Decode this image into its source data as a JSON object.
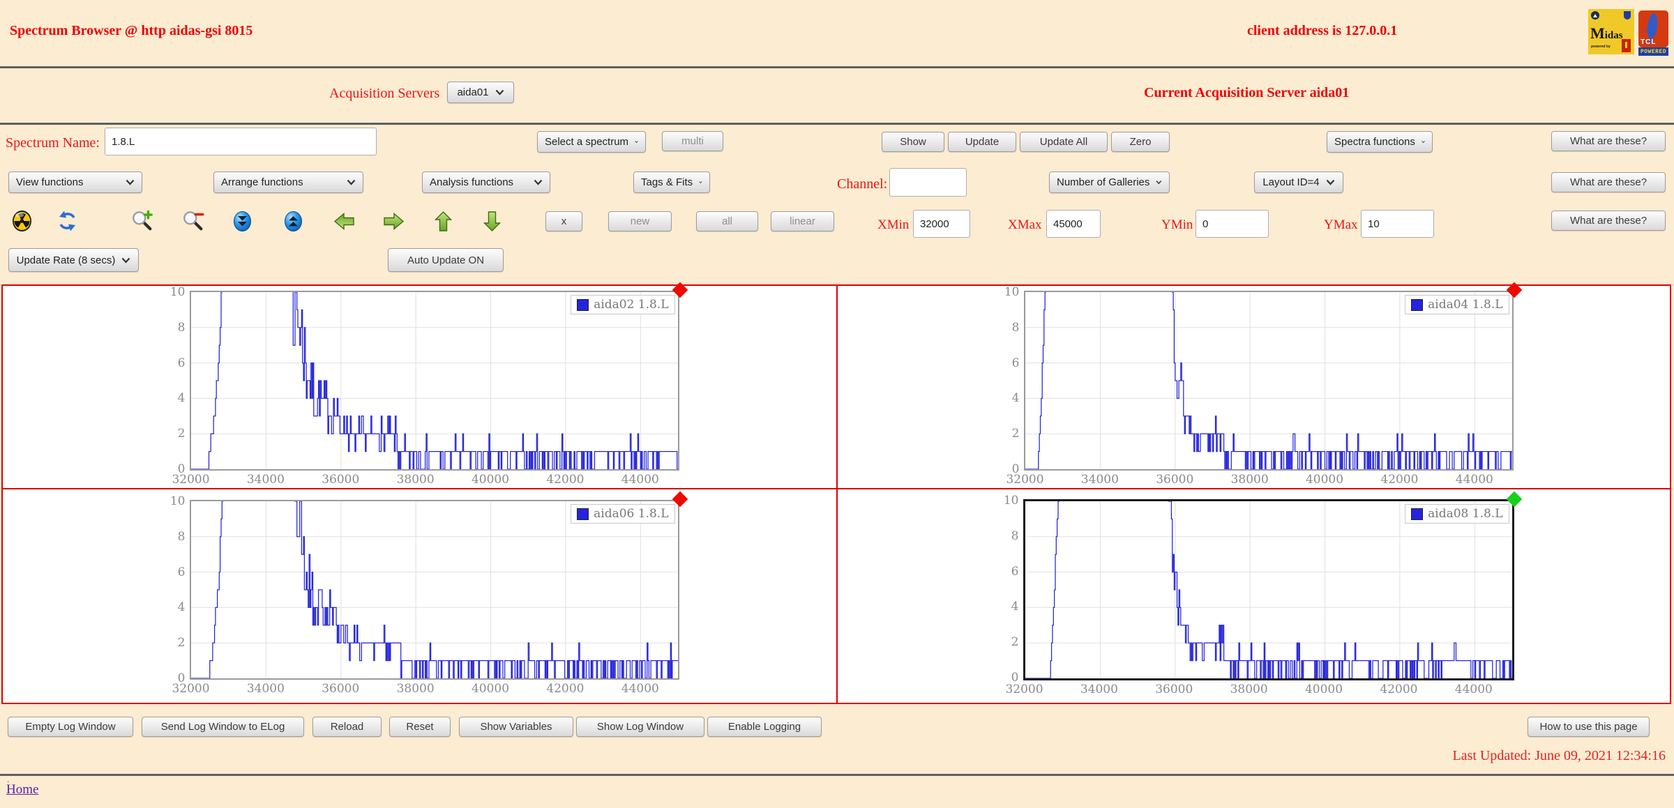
{
  "window": {
    "title": "Spectrum Browser @ http aidas-gsi 8015",
    "client_address": "client address is 127.0.0.1"
  },
  "logos": {
    "midas": {
      "text": "idas",
      "initial": "M",
      "sub": "powered by"
    },
    "tcl": {
      "text": "TCL",
      "sub": "POWERED"
    }
  },
  "server_row": {
    "label": "Acquisition Servers",
    "selected": "aida01",
    "current": "Current Acquisition Server aida01"
  },
  "spectrum_row": {
    "label": "Spectrum Name:",
    "value": "1.8.L",
    "select_spectrum": "Select a spectrum",
    "multi": "multi",
    "show": "Show",
    "update": "Update",
    "update_all": "Update All",
    "zero": "Zero",
    "spectra_functions": "Spectra functions",
    "what_are_these": "What are these?"
  },
  "functions_row": {
    "view": "View functions",
    "arrange": "Arrange functions",
    "analysis": "Analysis functions",
    "tags": "Tags & Fits",
    "channel_label": "Channel:",
    "channel_value": "",
    "galleries": "Number of Galleries",
    "layout": "Layout ID=4",
    "what_are_these": "What are these?"
  },
  "toolbar": {
    "icons": [
      "radiation-icon",
      "refresh-icon",
      "zoom-in-icon",
      "zoom-out-icon",
      "scroll-down-icon",
      "scroll-up-icon",
      "arrow-left-icon",
      "arrow-right-icon",
      "arrow-up-icon",
      "arrow-down-icon"
    ],
    "x": "x",
    "new": "new",
    "all": "all",
    "linear": "linear",
    "xmin_label": "XMin",
    "xmin": "32000",
    "xmax_label": "XMax",
    "xmax": "45000",
    "ymin_label": "YMin",
    "ymin": "0",
    "ymax_label": "YMax",
    "ymax": "10",
    "what_are_these": "What are these?"
  },
  "update_row": {
    "rate": "Update Rate (8 secs)",
    "auto": "Auto Update ON"
  },
  "charts_axis": {
    "xmin": 32000,
    "xmax": 45000,
    "ymin": 0,
    "ymax": 10,
    "xticks": [
      32000,
      34000,
      36000,
      38000,
      40000,
      42000,
      44000
    ],
    "yticks": [
      0,
      2,
      4,
      6,
      8,
      10
    ],
    "grid": true
  },
  "charts": [
    {
      "legend": "aida02 1.8.L",
      "indicator": "#ee0800",
      "frame": "gray",
      "seed": 7,
      "profile": [
        [
          32000,
          0
        ],
        [
          32440,
          0
        ],
        [
          32500,
          1
        ],
        [
          32560,
          2
        ],
        [
          32640,
          3
        ],
        [
          32700,
          5
        ],
        [
          32760,
          7
        ],
        [
          32820,
          10
        ],
        [
          32860,
          12
        ],
        [
          34700,
          12
        ],
        [
          34760,
          10
        ],
        [
          34860,
          9
        ],
        [
          34960,
          7.5
        ],
        [
          35060,
          6
        ],
        [
          35180,
          5
        ],
        [
          35300,
          4.2
        ],
        [
          35520,
          4
        ],
        [
          35760,
          3.2
        ],
        [
          36050,
          2.7
        ],
        [
          36400,
          2.2
        ],
        [
          37000,
          2
        ],
        [
          37500,
          1.6
        ],
        [
          38200,
          1.3
        ],
        [
          39200,
          1.05
        ],
        [
          45000,
          0.95
        ]
      ]
    },
    {
      "legend": "aida04 1.8.L",
      "indicator": "#ee0800",
      "frame": "gray",
      "seed": 13,
      "profile": [
        [
          32000,
          0
        ],
        [
          32350,
          0
        ],
        [
          32400,
          2
        ],
        [
          32450,
          5
        ],
        [
          32500,
          8
        ],
        [
          32540,
          10
        ],
        [
          32580,
          12
        ],
        [
          35880,
          12
        ],
        [
          35960,
          10
        ],
        [
          36040,
          7
        ],
        [
          36140,
          5
        ],
        [
          36260,
          3.2
        ],
        [
          36450,
          2.4
        ],
        [
          36800,
          2
        ],
        [
          37400,
          1.5
        ],
        [
          38200,
          1.2
        ],
        [
          39200,
          1.02
        ],
        [
          45000,
          0.95
        ]
      ]
    },
    {
      "legend": "aida06 1.8.L",
      "indicator": "#ee0800",
      "frame": "gray",
      "seed": 21,
      "profile": [
        [
          32000,
          0
        ],
        [
          32470,
          0
        ],
        [
          32530,
          1
        ],
        [
          32600,
          2
        ],
        [
          32680,
          4
        ],
        [
          32760,
          6
        ],
        [
          32830,
          10
        ],
        [
          32880,
          12
        ],
        [
          34740,
          12
        ],
        [
          34820,
          10
        ],
        [
          34920,
          8
        ],
        [
          35040,
          6.5
        ],
        [
          35160,
          5
        ],
        [
          35320,
          4.3
        ],
        [
          35560,
          4
        ],
        [
          35800,
          3.1
        ],
        [
          36150,
          2.6
        ],
        [
          36500,
          2.1
        ],
        [
          37100,
          2
        ],
        [
          37600,
          1.6
        ],
        [
          38300,
          1.25
        ],
        [
          39300,
          1.03
        ],
        [
          45000,
          0.95
        ]
      ]
    },
    {
      "legend": "aida08 1.8.L",
      "indicator": "#18d11c",
      "frame": "black",
      "seed": 42,
      "profile": [
        [
          32000,
          0
        ],
        [
          32660,
          0
        ],
        [
          32720,
          2
        ],
        [
          32780,
          5
        ],
        [
          32840,
          8
        ],
        [
          32900,
          10
        ],
        [
          32950,
          12
        ],
        [
          35780,
          12
        ],
        [
          35860,
          10
        ],
        [
          35950,
          7
        ],
        [
          36060,
          4.5
        ],
        [
          36220,
          3
        ],
        [
          36450,
          2.3
        ],
        [
          36900,
          2
        ],
        [
          37500,
          1.5
        ],
        [
          38300,
          1.15
        ],
        [
          39300,
          1.0
        ],
        [
          45000,
          0.95
        ]
      ]
    }
  ],
  "log_row": {
    "buttons": [
      "Empty Log Window",
      "Send Log Window to ELog",
      "Reload",
      "Reset",
      "Show Variables",
      "Show Log Window",
      "Enable Logging"
    ],
    "howto": "How to use this page"
  },
  "footer": {
    "last_updated": "Last Updated: June 09, 2021 12:34:16",
    "home": "Home",
    "dot": "."
  },
  "colors": {
    "page_bg": "#fcecd2",
    "label_red": "#ee1414",
    "title_red": "#f00000",
    "gallery_border": "#dd0000",
    "series_blue": "#2424dd",
    "indicator_red": "#ee0800",
    "indicator_green": "#18d11c",
    "frame_gray": "#9a9a9a",
    "frame_black": "#1b1b1b"
  }
}
